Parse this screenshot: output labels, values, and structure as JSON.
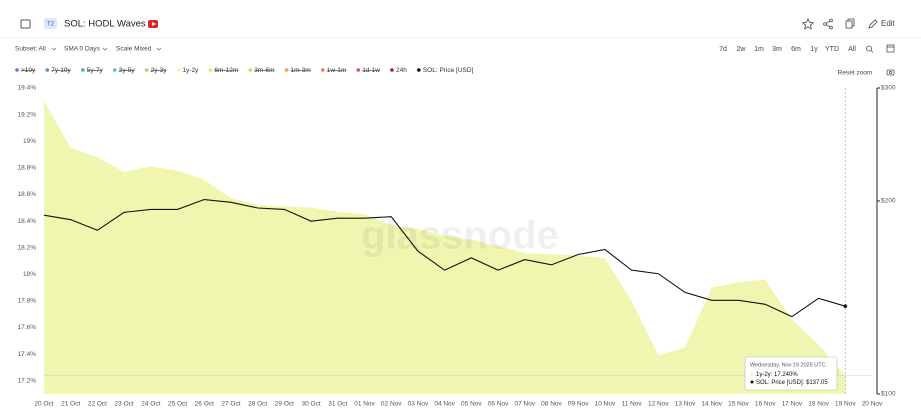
{
  "header": {
    "badge": "T2",
    "title": "SOL: HODL Waves",
    "edit": "Edit"
  },
  "controls": {
    "subset": "Subset: All",
    "sma": "SMA 0 Days",
    "scale": "Scale Mixed",
    "ranges": [
      "7d",
      "2w",
      "1m",
      "3m",
      "6m",
      "1y",
      "YTD",
      "All"
    ],
    "reset_zoom": "Reset zoom"
  },
  "watermark": "glassnode",
  "chart_data": {
    "type": "area",
    "categories": [
      "20 Oct",
      "21 Oct",
      "22 Oct",
      "23 Oct",
      "24 Oct",
      "25 Oct",
      "26 Oct",
      "27 Oct",
      "28 Oct",
      "29 Oct",
      "30 Oct",
      "31 Oct",
      "01 Nov",
      "02 Nov",
      "03 Nov",
      "04 Nov",
      "05 Nov",
      "06 Nov",
      "07 Nov",
      "08 Nov",
      "09 Nov",
      "10 Nov",
      "11 Nov",
      "12 Nov",
      "13 Nov",
      "14 Nov",
      "15 Nov",
      "16 Nov",
      "17 Nov",
      "18 Nov",
      "19 Nov",
      "20 Nov"
    ],
    "ylim": [
      17.1,
      19.4
    ],
    "yticks": [
      {
        "value": 19.4,
        "label": "19.4%"
      },
      {
        "value": 19.2,
        "label": "19.2%"
      },
      {
        "value": 19,
        "label": "19%"
      },
      {
        "value": 18.8,
        "label": "18.8%"
      },
      {
        "value": 18.6,
        "label": "18.6%"
      },
      {
        "value": 18.4,
        "label": "18.4%"
      },
      {
        "value": 18.2,
        "label": "18.2%"
      },
      {
        "value": 18,
        "label": "18%"
      },
      {
        "value": 17.8,
        "label": "17.8%"
      },
      {
        "value": 17.6,
        "label": "17.6%"
      },
      {
        "value": 17.4,
        "label": "17.4%"
      },
      {
        "value": 17.2,
        "label": "17.2%"
      }
    ],
    "y2lim": [
      100,
      300
    ],
    "y2_log": true,
    "y2ticks": [
      {
        "value": 300,
        "label": "$300"
      },
      {
        "value": 200,
        "label": "$200"
      },
      {
        "value": 100,
        "label": "$100"
      }
    ],
    "series": [
      {
        "name": ">10y",
        "color": "#6f74d8",
        "hidden": true
      },
      {
        "name": "7y-10y",
        "color": "#4f8fd9",
        "hidden": true
      },
      {
        "name": "5y-7y",
        "color": "#3fb89a",
        "hidden": true
      },
      {
        "name": "3y-5y",
        "color": "#5cc6a4",
        "hidden": true
      },
      {
        "name": "2y-3y",
        "color": "#a8d86a",
        "hidden": true
      },
      {
        "name": "1y-2y",
        "color": "#eef5a6",
        "values": [
          19.3,
          18.95,
          18.88,
          18.77,
          18.81,
          18.78,
          18.71,
          18.57,
          18.52,
          18.51,
          18.5,
          18.47,
          18.45,
          18.37,
          18.34,
          18.29,
          18.26,
          18.21,
          18.16,
          18.15,
          18.14,
          18.12,
          17.8,
          17.39,
          17.45,
          17.9,
          17.94,
          17.96,
          17.66,
          17.47,
          17.24,
          null
        ]
      },
      {
        "name": "6m-12m",
        "color": "#f3e35a",
        "hidden": true
      },
      {
        "name": "3m-6m",
        "color": "#f2c94c",
        "hidden": true
      },
      {
        "name": "1m-3m",
        "color": "#f2a14c",
        "hidden": true
      },
      {
        "name": "1w-1m",
        "color": "#ee7a52",
        "hidden": true
      },
      {
        "name": "1d-1w",
        "color": "#e0457a",
        "hidden": true
      },
      {
        "name": "24h",
        "color": "#b3122e"
      },
      {
        "name": "SOL: Price [USD]",
        "color": "#111111",
        "axis": "y2",
        "values": [
          190,
          187,
          180,
          192,
          194,
          194,
          201,
          199,
          195,
          194,
          186,
          188,
          188,
          189,
          167,
          156,
          163,
          156,
          162,
          159,
          165,
          168,
          156,
          154,
          144,
          140,
          140,
          138,
          132,
          141,
          137.05,
          null
        ]
      }
    ],
    "tooltip": {
      "date": "Wednesday, Nov 19 2025 UTC",
      "lines": [
        "1y-2y: 17.240%",
        "SOL: Price [USD]: $137.05"
      ]
    }
  }
}
